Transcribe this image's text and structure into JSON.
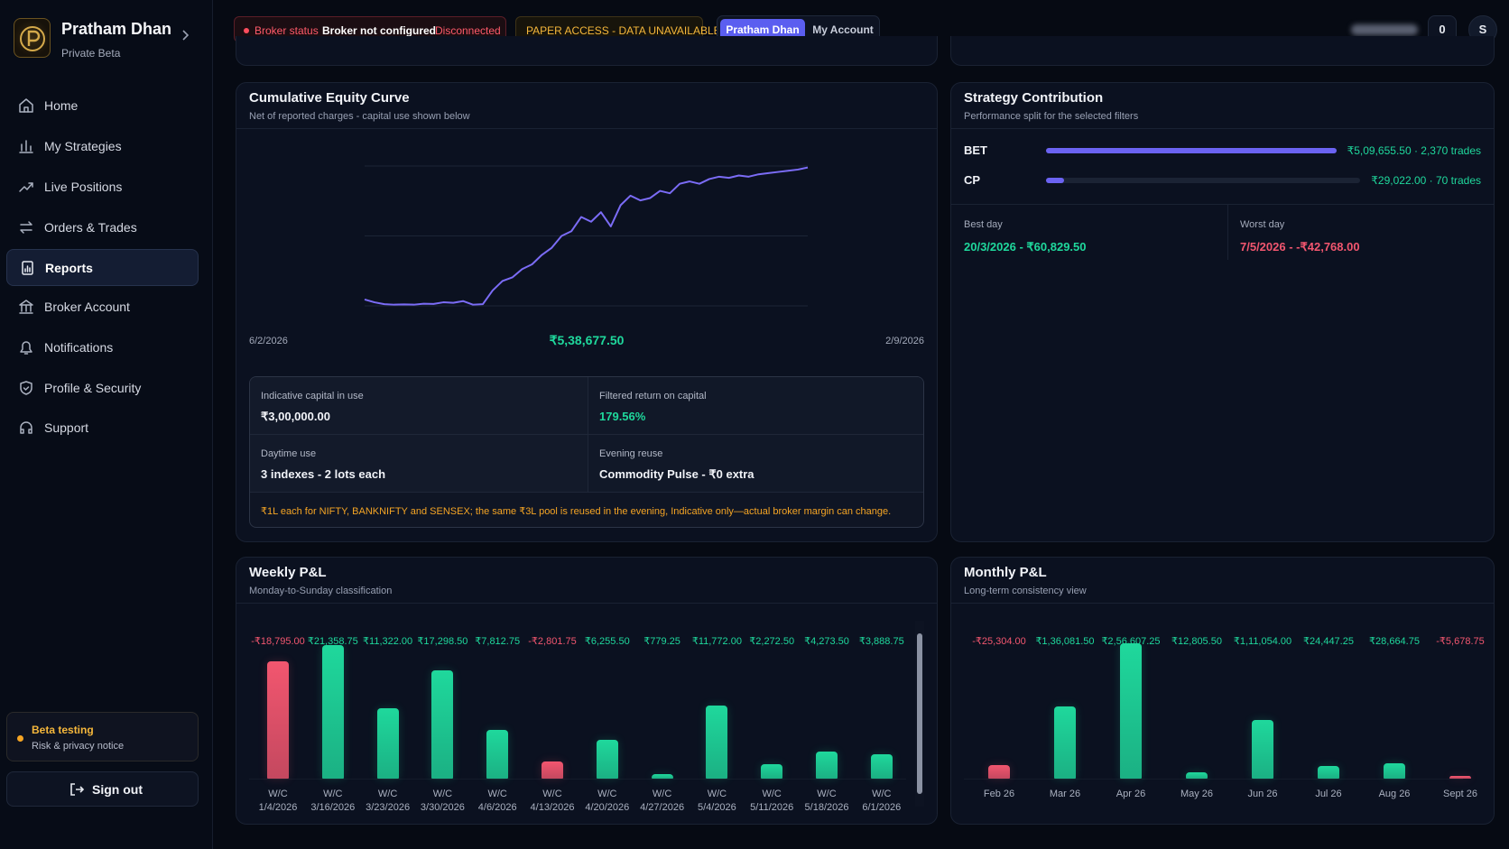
{
  "sidebar": {
    "brand": {
      "title": "Pratham Dhan",
      "subtitle": "Private Beta"
    },
    "nav": [
      "Home",
      "My Strategies",
      "Live Positions",
      "Orders & Trades",
      "Reports",
      "Broker Account",
      "Notifications",
      "Profile & Security",
      "Support"
    ],
    "active": 4,
    "beta": {
      "title": "Beta testing",
      "text": "Risk & privacy notice"
    },
    "sign_out": "Sign out"
  },
  "header": {
    "broker": {
      "label": "Broker status",
      "status": "Broker not configured",
      "state": "Disconnected"
    },
    "paper": "PAPER ACCESS - DATA UNAVAILABLE",
    "tabs": [
      "Pratham Dhan",
      "My Account"
    ],
    "notifications": "0",
    "avatar": "S"
  },
  "chart_data": [
    {
      "type": "line",
      "title": "Cumulative Equity Curve",
      "subtitle": "Net of reported charges - capital use shown below",
      "x_start": "6/2/2026",
      "x_end": "2/9/2026",
      "total": {
        "value": 538677.5,
        "label": "₹5,38,677.50"
      },
      "color": "#7b6cf6",
      "ylim": [
        -45000,
        545000
      ],
      "values": [
        -18000,
        -30000,
        -38000,
        -40000,
        -39000,
        -40000,
        -36000,
        -37000,
        -30000,
        -32000,
        -25000,
        -40000,
        -38000,
        20000,
        60000,
        75000,
        110000,
        130000,
        170000,
        200000,
        250000,
        270000,
        330000,
        310000,
        350000,
        290000,
        380000,
        420000,
        400000,
        410000,
        440000,
        430000,
        470000,
        480000,
        470000,
        490000,
        500000,
        495000,
        505000,
        500000,
        510000,
        515000,
        520000,
        525000,
        530000,
        538677.5
      ]
    },
    {
      "type": "bar",
      "title": "Weekly P&L",
      "subtitle": "Monday-to-Sunday classification",
      "categories": [
        "W/C 1/4/2026",
        "W/C 3/16/2026",
        "W/C 3/23/2026",
        "W/C 3/30/2026",
        "W/C 4/6/2026",
        "W/C 4/13/2026",
        "W/C 4/20/2026",
        "W/C 4/27/2026",
        "W/C 5/4/2026",
        "W/C 5/11/2026",
        "W/C 5/18/2026",
        "W/C 6/1/2026"
      ],
      "values": [
        -18795,
        21358.75,
        11322,
        17298.5,
        7812.75,
        -2801.75,
        6255.5,
        779.25,
        11772,
        2272.5,
        4273.5,
        3888.75
      ],
      "value_labels": [
        "-₹18,795.00",
        "₹21,358.75",
        "₹11,322.00",
        "₹17,298.50",
        "₹7,812.75",
        "-₹2,801.75",
        "₹6,255.50",
        "₹779.25",
        "₹11,772.00",
        "₹2,272.50",
        "₹4,273.50",
        "₹3,888.75"
      ],
      "ylim": [
        0,
        22000
      ],
      "colors": {
        "positive": "#1fd89c",
        "negative": "#f2566f"
      }
    },
    {
      "type": "bar",
      "title": "Monthly P&L",
      "subtitle": "Long-term consistency view",
      "categories": [
        "Feb 26",
        "Mar 26",
        "Apr 26",
        "May 26",
        "Jun 26",
        "Jul 26",
        "Aug 26",
        "Sept 26"
      ],
      "values": [
        -25304,
        136081.5,
        256607.25,
        12805.5,
        111054,
        24447.25,
        28664.75,
        -5678.75
      ],
      "value_labels": [
        "-₹25,304.00",
        "₹1,36,081.50",
        "₹2,56,607.25",
        "₹12,805.50",
        "₹1,11,054.00",
        "₹24,447.25",
        "₹28,664.75",
        "-₹5,678.75"
      ],
      "ylim": [
        0,
        260000
      ],
      "colors": {
        "positive": "#1fd89c",
        "negative": "#f2566f"
      }
    }
  ],
  "capital": {
    "items": [
      {
        "label": "Indicative capital in use",
        "value": "₹3,00,000.00"
      },
      {
        "label": "Filtered return on capital",
        "value": "179.56%"
      },
      {
        "label": "Daytime use",
        "value": "3 indexes - 2 lots each"
      },
      {
        "label": "Evening reuse",
        "value": "Commodity Pulse - ₹0 extra"
      }
    ],
    "note": "₹1L each for NIFTY, BANKNIFTY and SENSEX; the same ₹3L pool is reused in the evening, Indicative only—actual broker margin can change."
  },
  "strategy": {
    "title": "Strategy Contribution",
    "subtitle": "Performance split for the selected filters",
    "xlim": [
      0,
      509655.5
    ],
    "rows": [
      {
        "name": "BET",
        "value": 509655.5,
        "trades": 2370,
        "label": "₹5,09,655.50 · 2,370 trades"
      },
      {
        "name": "CP",
        "value": 29022,
        "trades": 70,
        "label": "₹29,022.00 · 70 trades"
      }
    ],
    "best": {
      "label": "Best day",
      "value": "20/3/2026 - ₹60,829.50"
    },
    "worst": {
      "label": "Worst day",
      "value": "7/5/2026 - -₹42,768.00"
    }
  }
}
